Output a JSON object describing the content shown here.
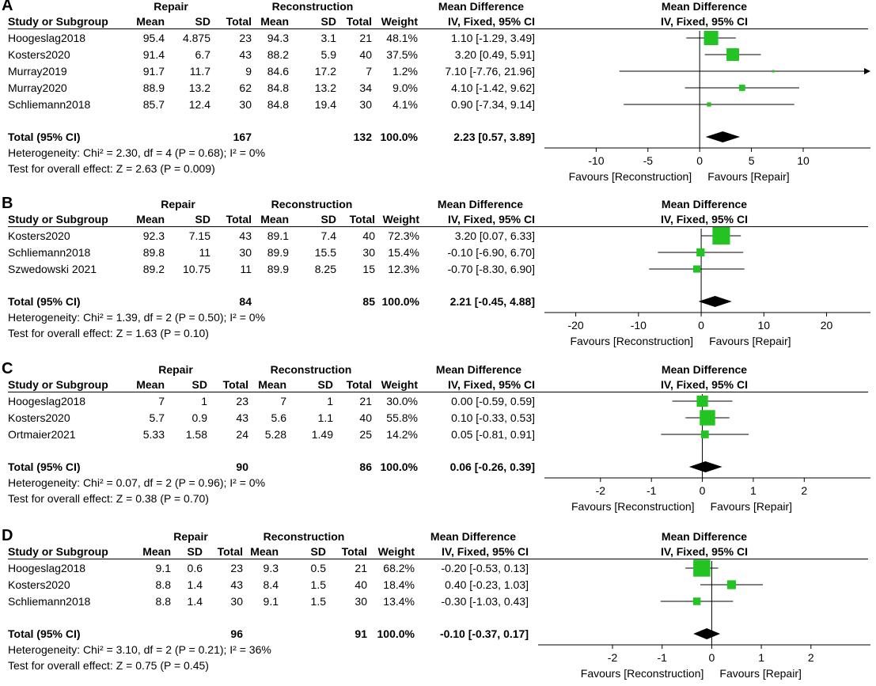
{
  "colors": {
    "marker": "#22c322",
    "line": "#000000",
    "diamond": "#000000"
  },
  "common": {
    "group1": "Repair",
    "group2": "Reconstruction",
    "md_header": "Mean Difference",
    "study_header": "Study or Subgroup",
    "mean": "Mean",
    "sd": "SD",
    "total": "Total",
    "weight": "Weight",
    "method": "IV, Fixed, 95% CI",
    "total_label": "Total (95% CI)",
    "favours_left": "Favours [Reconstruction]",
    "favours_right": "Favours [Repair]"
  },
  "chart_data": [
    {
      "type": "forest",
      "panel": "A",
      "studies": [
        {
          "name": "Hoogeslag2018",
          "m1": "95.4",
          "sd1": "4.875",
          "n1": "23",
          "m2": "94.3",
          "sd2": "3.1",
          "n2": "21",
          "weight": "48.1%",
          "ci_text": "1.10 [-1.29, 3.49]",
          "md": 1.1,
          "lo": -1.29,
          "hi": 3.49,
          "w": 48.1
        },
        {
          "name": "Kosters2020",
          "m1": "91.4",
          "sd1": "6.7",
          "n1": "43",
          "m2": "88.2",
          "sd2": "5.9",
          "n2": "40",
          "weight": "37.5%",
          "ci_text": "3.20 [0.49, 5.91]",
          "md": 3.2,
          "lo": 0.49,
          "hi": 5.91,
          "w": 37.5
        },
        {
          "name": "Murray2019",
          "m1": "91.7",
          "sd1": "11.7",
          "n1": "9",
          "m2": "84.6",
          "sd2": "17.2",
          "n2": "7",
          "weight": "1.2%",
          "ci_text": "7.10 [-7.76, 21.96]",
          "md": 7.1,
          "lo": -7.76,
          "hi": 21.96,
          "w": 1.2
        },
        {
          "name": "Murray2020",
          "m1": "88.9",
          "sd1": "13.2",
          "n1": "62",
          "m2": "84.8",
          "sd2": "13.2",
          "n2": "34",
          "weight": "9.0%",
          "ci_text": "4.10 [-1.42, 9.62]",
          "md": 4.1,
          "lo": -1.42,
          "hi": 9.62,
          "w": 9.0
        },
        {
          "name": "Schliemann2018",
          "m1": "85.7",
          "sd1": "12.4",
          "n1": "30",
          "m2": "84.8",
          "sd2": "19.4",
          "n2": "30",
          "weight": "4.1%",
          "ci_text": "0.90 [-7.34, 9.14]",
          "md": 0.9,
          "lo": -7.34,
          "hi": 9.14,
          "w": 4.1
        }
      ],
      "total": {
        "n1": "167",
        "n2": "132",
        "weight": "100.0%",
        "ci_text": "2.23 [0.57, 3.89]",
        "md": 2.23,
        "lo": 0.57,
        "hi": 3.89
      },
      "heterogeneity": "Heterogeneity: Chi² = 2.30, df = 4 (P = 0.68); I² = 0%",
      "overall": "Test for overall effect: Z = 2.63 (P = 0.009)",
      "xlim": [
        -15,
        16.5
      ],
      "ticks": [
        -10,
        -5,
        0,
        5,
        10
      ]
    },
    {
      "type": "forest",
      "panel": "B",
      "studies": [
        {
          "name": "Kosters2020",
          "m1": "92.3",
          "sd1": "7.15",
          "n1": "43",
          "m2": "89.1",
          "sd2": "7.4",
          "n2": "40",
          "weight": "72.3%",
          "ci_text": "3.20 [0.07, 6.33]",
          "md": 3.2,
          "lo": 0.07,
          "hi": 6.33,
          "w": 72.3
        },
        {
          "name": "Schliemann2018",
          "m1": "89.8",
          "sd1": "11",
          "n1": "30",
          "m2": "89.9",
          "sd2": "15.5",
          "n2": "30",
          "weight": "15.4%",
          "ci_text": "-0.10 [-6.90, 6.70]",
          "md": -0.1,
          "lo": -6.9,
          "hi": 6.7,
          "w": 15.4
        },
        {
          "name": "Szwedowski 2021",
          "m1": "89.2",
          "sd1": "10.75",
          "n1": "11",
          "m2": "89.9",
          "sd2": "8.25",
          "n2": "15",
          "weight": "12.3%",
          "ci_text": "-0.70 [-8.30, 6.90]",
          "md": -0.7,
          "lo": -8.3,
          "hi": 6.9,
          "w": 12.3
        }
      ],
      "total": {
        "n1": "84",
        "n2": "85",
        "weight": "100.0%",
        "ci_text": "2.21 [-0.45, 4.88]",
        "md": 2.21,
        "lo": -0.45,
        "hi": 4.88
      },
      "heterogeneity": "Heterogeneity: Chi² = 1.39, df = 2 (P = 0.50); I² = 0%",
      "overall": "Test for overall effect: Z = 1.63 (P = 0.10)",
      "xlim": [
        -25,
        27
      ],
      "ticks": [
        -20,
        -10,
        0,
        10,
        20
      ]
    },
    {
      "type": "forest",
      "panel": "C",
      "studies": [
        {
          "name": "Hoogeslag2018",
          "m1": "7",
          "sd1": "1",
          "n1": "23",
          "m2": "7",
          "sd2": "1",
          "n2": "21",
          "weight": "30.0%",
          "ci_text": "0.00 [-0.59, 0.59]",
          "md": 0.0,
          "lo": -0.59,
          "hi": 0.59,
          "w": 30.0
        },
        {
          "name": "Kosters2020",
          "m1": "5.7",
          "sd1": "0.9",
          "n1": "43",
          "m2": "5.6",
          "sd2": "1.1",
          "n2": "40",
          "weight": "55.8%",
          "ci_text": "0.10 [-0.33, 0.53]",
          "md": 0.1,
          "lo": -0.33,
          "hi": 0.53,
          "w": 55.8
        },
        {
          "name": "Ortmaier2021",
          "m1": "5.33",
          "sd1": "1.58",
          "n1": "24",
          "m2": "5.28",
          "sd2": "1.49",
          "n2": "25",
          "weight": "14.2%",
          "ci_text": "0.05 [-0.81, 0.91]",
          "md": 0.05,
          "lo": -0.81,
          "hi": 0.91,
          "w": 14.2
        }
      ],
      "total": {
        "n1": "90",
        "n2": "86",
        "weight": "100.0%",
        "ci_text": "0.06 [-0.26, 0.39]",
        "md": 0.06,
        "lo": -0.26,
        "hi": 0.39
      },
      "heterogeneity": "Heterogeneity: Chi² = 0.07, df = 2 (P = 0.96); I² = 0%",
      "overall": "Test for overall effect: Z = 0.38 (P = 0.70)",
      "xlim": [
        -3.1,
        3.3
      ],
      "ticks": [
        -2,
        -1,
        0,
        1,
        2
      ]
    },
    {
      "type": "forest",
      "panel": "D",
      "studies": [
        {
          "name": "Hoogeslag2018",
          "m1": "9.1",
          "sd1": "0.6",
          "n1": "23",
          "m2": "9.3",
          "sd2": "0.5",
          "n2": "21",
          "weight": "68.2%",
          "ci_text": "-0.20 [-0.53, 0.13]",
          "md": -0.2,
          "lo": -0.53,
          "hi": 0.13,
          "w": 68.2
        },
        {
          "name": "Kosters2020",
          "m1": "8.8",
          "sd1": "1.4",
          "n1": "43",
          "m2": "8.4",
          "sd2": "1.5",
          "n2": "40",
          "weight": "18.4%",
          "ci_text": "0.40 [-0.23, 1.03]",
          "md": 0.4,
          "lo": -0.23,
          "hi": 1.03,
          "w": 18.4
        },
        {
          "name": "Schliemann2018",
          "m1": "8.8",
          "sd1": "1.4",
          "n1": "30",
          "m2": "9.1",
          "sd2": "1.5",
          "n2": "30",
          "weight": "13.4%",
          "ci_text": "-0.30 [-1.03, 0.43]",
          "md": -0.3,
          "lo": -1.03,
          "hi": 0.43,
          "w": 13.4
        }
      ],
      "total": {
        "n1": "96",
        "n2": "91",
        "weight": "100.0%",
        "ci_text": "-0.10 [-0.37, 0.17]",
        "md": -0.1,
        "lo": -0.37,
        "hi": 0.17
      },
      "heterogeneity": "Heterogeneity: Chi² = 3.10, df = 2 (P = 0.21); I² = 36%",
      "overall": "Test for overall effect: Z = 0.75 (P = 0.45)",
      "xlim": [
        -3.5,
        3.2
      ],
      "ticks": [
        -2,
        -1,
        0,
        1,
        2
      ]
    }
  ]
}
